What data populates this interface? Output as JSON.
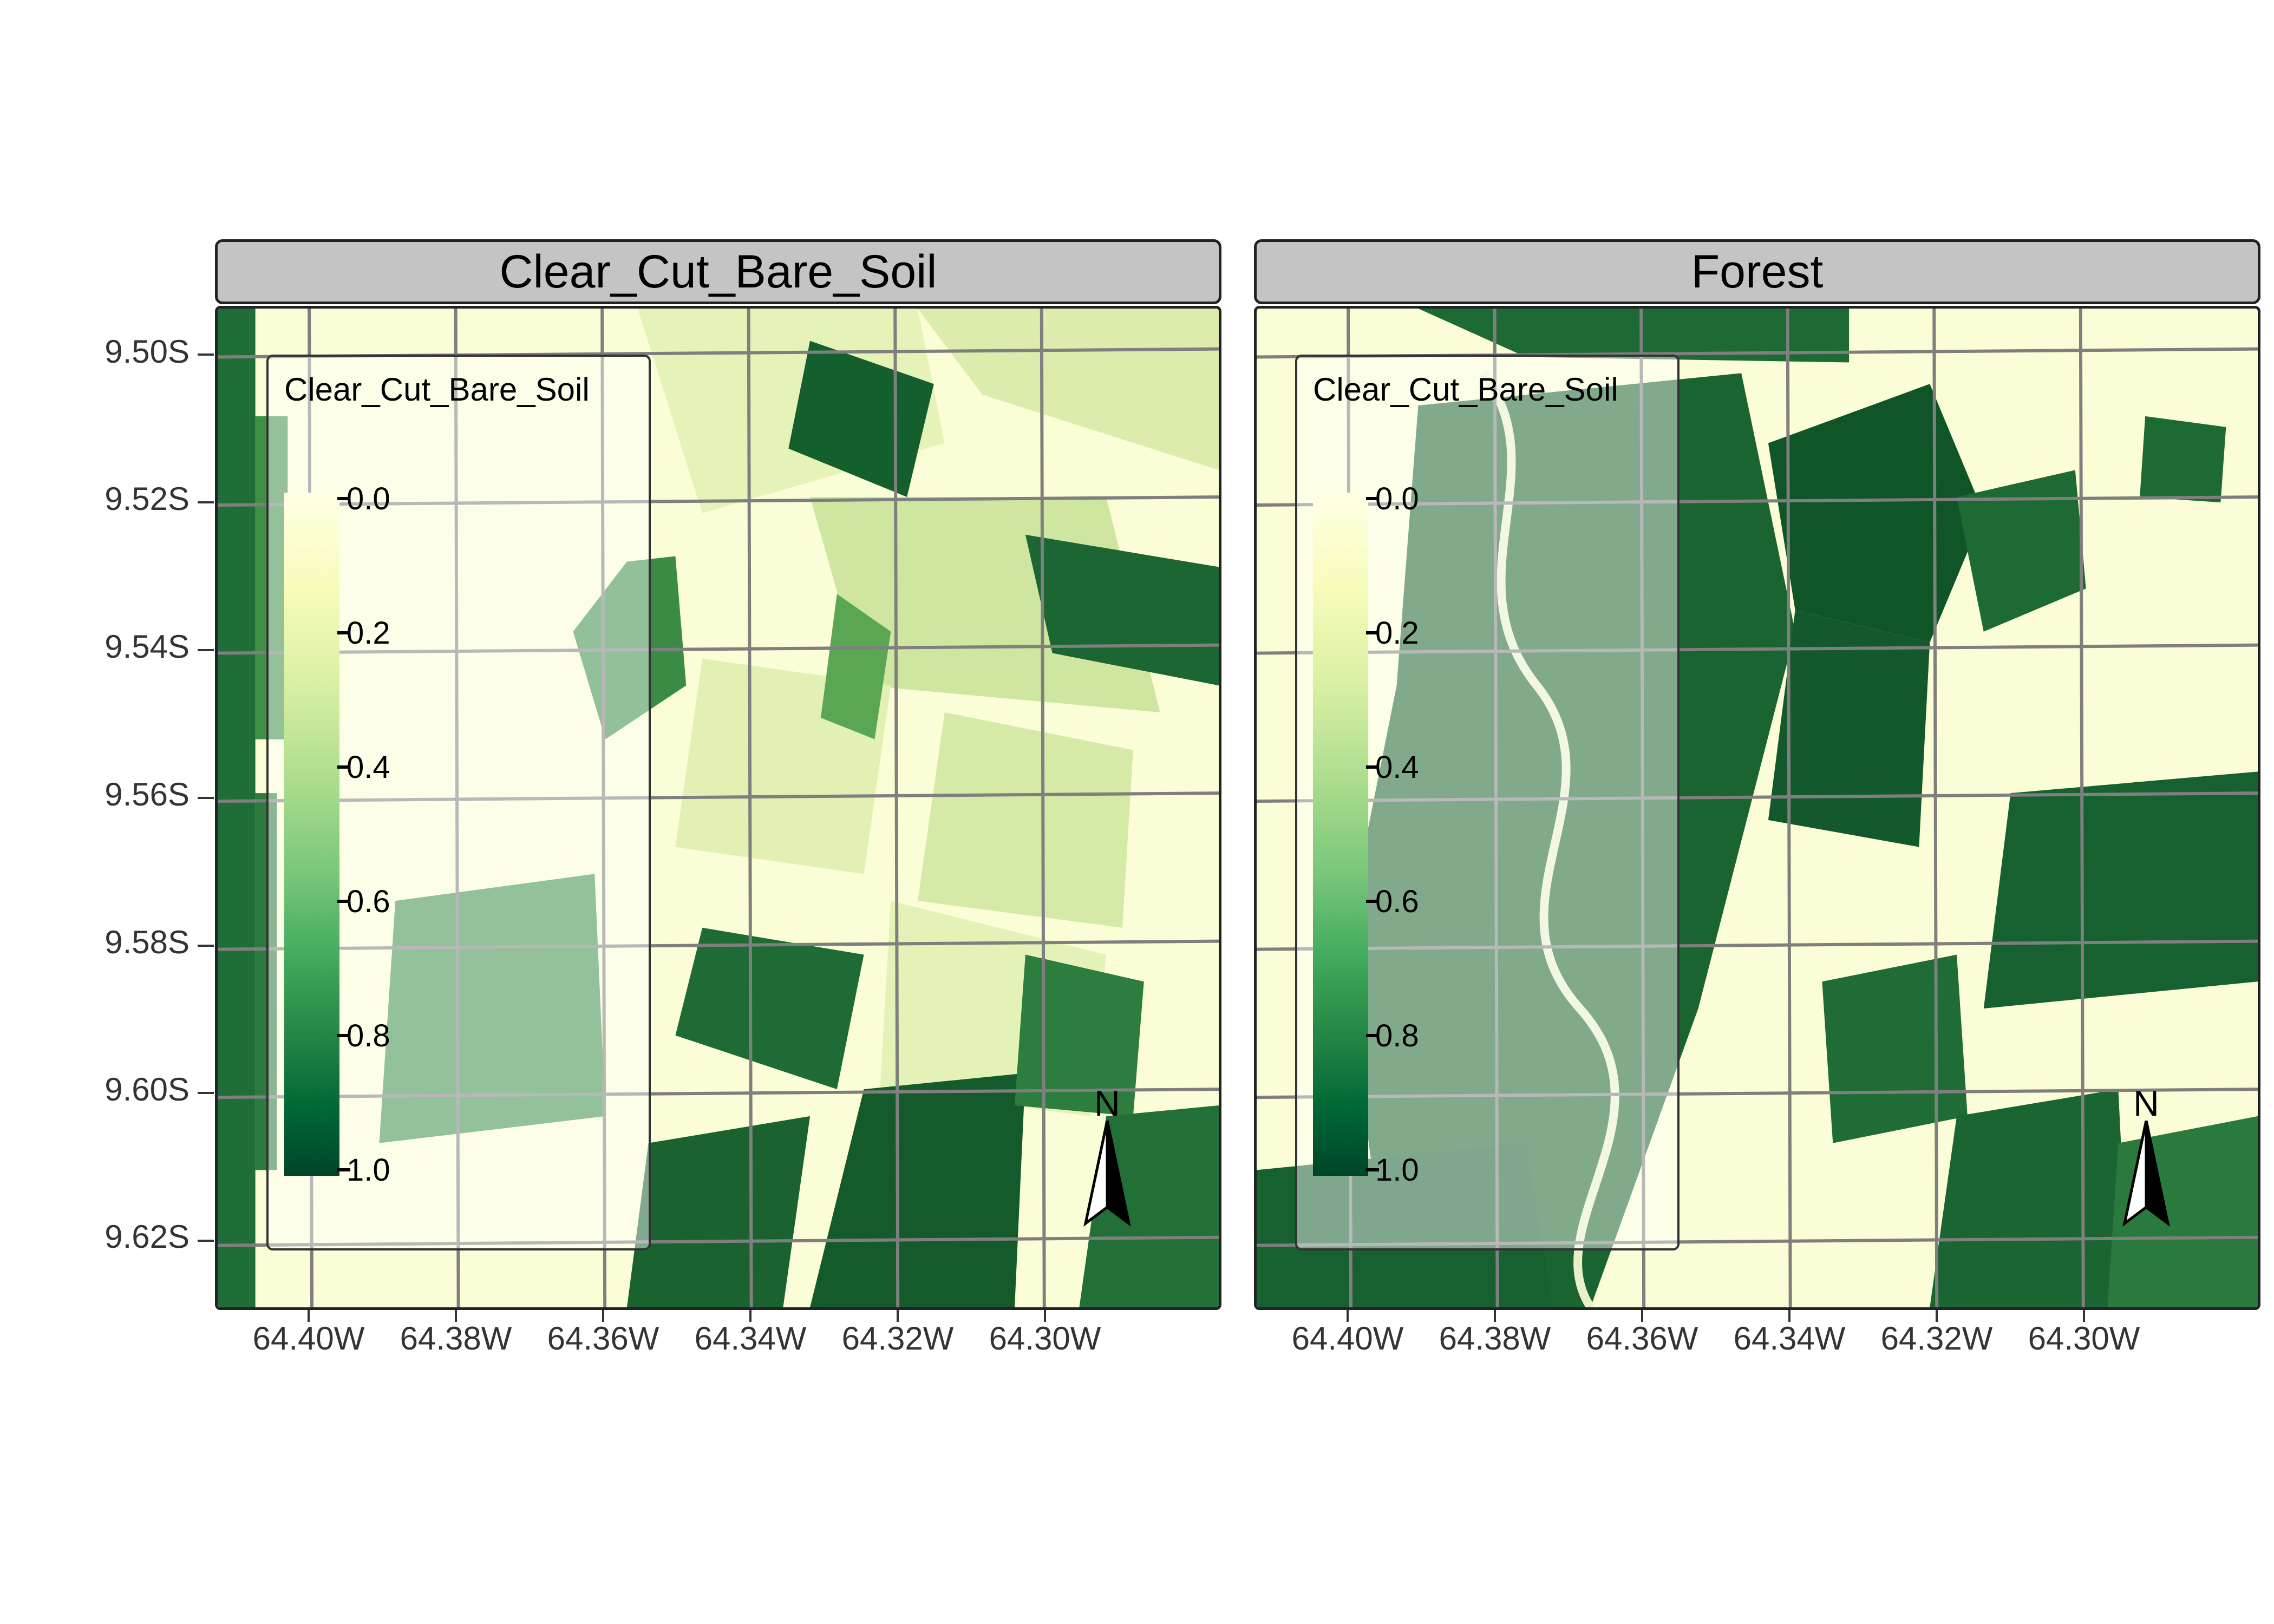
{
  "panels": [
    {
      "title": "Clear_Cut_Bare_Soil"
    },
    {
      "title": "Forest"
    }
  ],
  "y_axis": {
    "labels": [
      "9.50S",
      "9.52S",
      "9.54S",
      "9.56S",
      "9.58S",
      "9.60S",
      "9.62S"
    ]
  },
  "x_axis": {
    "labels": [
      "64.40W",
      "64.38W",
      "64.36W",
      "64.34W",
      "64.32W",
      "64.30W"
    ]
  },
  "legend": {
    "title": "Clear_Cut_Bare_Soil",
    "breaks": [
      "0.0",
      "0.2",
      "0.4",
      "0.6",
      "0.8",
      "1.0"
    ],
    "colors": [
      "#ffffe5",
      "#f7fcb9",
      "#d9f0a3",
      "#addd8e",
      "#78c679",
      "#41ab5d",
      "#238443",
      "#006837",
      "#004529"
    ]
  },
  "north_arrow": {
    "label": "N"
  }
}
